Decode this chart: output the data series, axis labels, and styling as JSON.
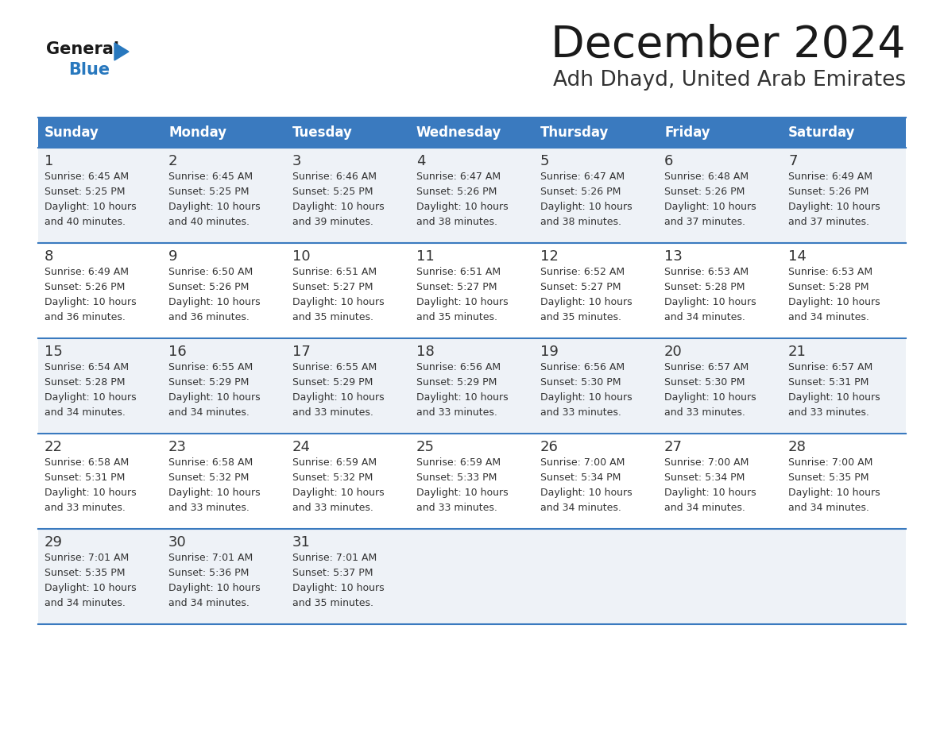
{
  "title": "December 2024",
  "subtitle": "Adh Dhayd, United Arab Emirates",
  "header_bg_color": "#3a7abf",
  "header_text_color": "#ffffff",
  "row_bg_odd": "#eef2f7",
  "row_bg_even": "#ffffff",
  "border_color": "#3a7abf",
  "day_headers": [
    "Sunday",
    "Monday",
    "Tuesday",
    "Wednesday",
    "Thursday",
    "Friday",
    "Saturday"
  ],
  "title_color": "#1a1a1a",
  "subtitle_color": "#333333",
  "text_color": "#333333",
  "calendar": [
    [
      {
        "day": 1,
        "sunrise": "6:45 AM",
        "sunset": "5:25 PM",
        "daylight_mins": "40"
      },
      {
        "day": 2,
        "sunrise": "6:45 AM",
        "sunset": "5:25 PM",
        "daylight_mins": "40"
      },
      {
        "day": 3,
        "sunrise": "6:46 AM",
        "sunset": "5:25 PM",
        "daylight_mins": "39"
      },
      {
        "day": 4,
        "sunrise": "6:47 AM",
        "sunset": "5:26 PM",
        "daylight_mins": "38"
      },
      {
        "day": 5,
        "sunrise": "6:47 AM",
        "sunset": "5:26 PM",
        "daylight_mins": "38"
      },
      {
        "day": 6,
        "sunrise": "6:48 AM",
        "sunset": "5:26 PM",
        "daylight_mins": "37"
      },
      {
        "day": 7,
        "sunrise": "6:49 AM",
        "sunset": "5:26 PM",
        "daylight_mins": "37"
      }
    ],
    [
      {
        "day": 8,
        "sunrise": "6:49 AM",
        "sunset": "5:26 PM",
        "daylight_mins": "36"
      },
      {
        "day": 9,
        "sunrise": "6:50 AM",
        "sunset": "5:26 PM",
        "daylight_mins": "36"
      },
      {
        "day": 10,
        "sunrise": "6:51 AM",
        "sunset": "5:27 PM",
        "daylight_mins": "35"
      },
      {
        "day": 11,
        "sunrise": "6:51 AM",
        "sunset": "5:27 PM",
        "daylight_mins": "35"
      },
      {
        "day": 12,
        "sunrise": "6:52 AM",
        "sunset": "5:27 PM",
        "daylight_mins": "35"
      },
      {
        "day": 13,
        "sunrise": "6:53 AM",
        "sunset": "5:28 PM",
        "daylight_mins": "34"
      },
      {
        "day": 14,
        "sunrise": "6:53 AM",
        "sunset": "5:28 PM",
        "daylight_mins": "34"
      }
    ],
    [
      {
        "day": 15,
        "sunrise": "6:54 AM",
        "sunset": "5:28 PM",
        "daylight_mins": "34"
      },
      {
        "day": 16,
        "sunrise": "6:55 AM",
        "sunset": "5:29 PM",
        "daylight_mins": "34"
      },
      {
        "day": 17,
        "sunrise": "6:55 AM",
        "sunset": "5:29 PM",
        "daylight_mins": "33"
      },
      {
        "day": 18,
        "sunrise": "6:56 AM",
        "sunset": "5:29 PM",
        "daylight_mins": "33"
      },
      {
        "day": 19,
        "sunrise": "6:56 AM",
        "sunset": "5:30 PM",
        "daylight_mins": "33"
      },
      {
        "day": 20,
        "sunrise": "6:57 AM",
        "sunset": "5:30 PM",
        "daylight_mins": "33"
      },
      {
        "day": 21,
        "sunrise": "6:57 AM",
        "sunset": "5:31 PM",
        "daylight_mins": "33"
      }
    ],
    [
      {
        "day": 22,
        "sunrise": "6:58 AM",
        "sunset": "5:31 PM",
        "daylight_mins": "33"
      },
      {
        "day": 23,
        "sunrise": "6:58 AM",
        "sunset": "5:32 PM",
        "daylight_mins": "33"
      },
      {
        "day": 24,
        "sunrise": "6:59 AM",
        "sunset": "5:32 PM",
        "daylight_mins": "33"
      },
      {
        "day": 25,
        "sunrise": "6:59 AM",
        "sunset": "5:33 PM",
        "daylight_mins": "33"
      },
      {
        "day": 26,
        "sunrise": "7:00 AM",
        "sunset": "5:34 PM",
        "daylight_mins": "34"
      },
      {
        "day": 27,
        "sunrise": "7:00 AM",
        "sunset": "5:34 PM",
        "daylight_mins": "34"
      },
      {
        "day": 28,
        "sunrise": "7:00 AM",
        "sunset": "5:35 PM",
        "daylight_mins": "34"
      }
    ],
    [
      {
        "day": 29,
        "sunrise": "7:01 AM",
        "sunset": "5:35 PM",
        "daylight_mins": "34"
      },
      {
        "day": 30,
        "sunrise": "7:01 AM",
        "sunset": "5:36 PM",
        "daylight_mins": "34"
      },
      {
        "day": 31,
        "sunrise": "7:01 AM",
        "sunset": "5:37 PM",
        "daylight_mins": "35"
      },
      null,
      null,
      null,
      null
    ]
  ],
  "logo_general_color": "#1a1a1a",
  "logo_blue_color": "#2878be",
  "logo_triangle_color": "#2878be"
}
